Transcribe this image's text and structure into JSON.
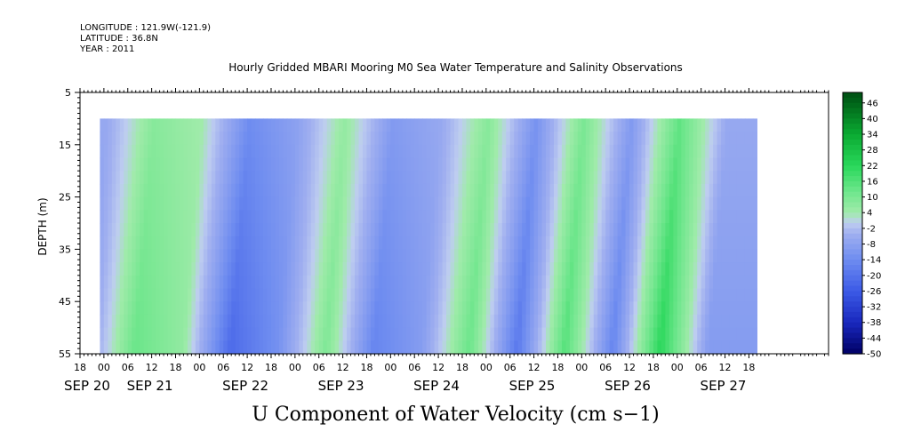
{
  "header": {
    "longitude": "LONGITUDE : 121.9W(-121.9)",
    "latitude": "LATITUDE : 36.8N",
    "year": "YEAR : 2011"
  },
  "chart_data": {
    "type": "heatmap",
    "title": "Hourly Gridded MBARI Mooring M0 Sea Water Temperature and Salinity Observations",
    "bottom_title": "U Component of Water Velocity (cm s−1)",
    "ylabel": "DEPTH (m)",
    "ylim": [
      5,
      55
    ],
    "y_inverted": true,
    "y_ticks": [
      "5",
      "15",
      "25",
      "35",
      "45",
      "55"
    ],
    "x_hour_ticks": [
      "18",
      "00",
      "06",
      "12",
      "18",
      "00",
      "06",
      "12",
      "18",
      "00",
      "06",
      "12",
      "18",
      "00",
      "06",
      "12",
      "18",
      "00",
      "06",
      "12",
      "18",
      "00",
      "06",
      "12",
      "18",
      "00",
      "06",
      "12",
      "18"
    ],
    "x_date_labels": [
      "SEP 20",
      "SEP 21",
      "SEP 22",
      "SEP 23",
      "SEP 24",
      "SEP 25",
      "SEP 26",
      "SEP 27"
    ],
    "data_start": "SEP 20 23:00",
    "data_end": "SEP 27 20:00",
    "data_depth_range": [
      10,
      55
    ],
    "colorbar_labels": [
      "46",
      "40",
      "34",
      "28",
      "22",
      "16",
      "10",
      "4",
      "-2",
      "-8",
      "-14",
      "-20",
      "-26",
      "-32",
      "-38",
      "-44",
      "-50"
    ],
    "colorbar_min": -50,
    "colorbar_max": 50,
    "approx_surface_u_by_hour": [
      {
        "time": "SEP 21 00:00",
        "u": -6
      },
      {
        "time": "SEP 21 12:00",
        "u": 8
      },
      {
        "time": "SEP 22 00:00",
        "u": 4
      },
      {
        "time": "SEP 22 12:00",
        "u": -14
      },
      {
        "time": "SEP 23 00:00",
        "u": -8
      },
      {
        "time": "SEP 23 12:00",
        "u": 6
      },
      {
        "time": "SEP 24 00:00",
        "u": -10
      },
      {
        "time": "SEP 24 12:00",
        "u": -6
      },
      {
        "time": "SEP 25 00:00",
        "u": 8
      },
      {
        "time": "SEP 25 12:00",
        "u": -12
      },
      {
        "time": "SEP 26 00:00",
        "u": 10
      },
      {
        "time": "SEP 26 12:00",
        "u": -10
      },
      {
        "time": "SEP 27 00:00",
        "u": 14
      },
      {
        "time": "SEP 27 12:00",
        "u": -6
      }
    ]
  }
}
